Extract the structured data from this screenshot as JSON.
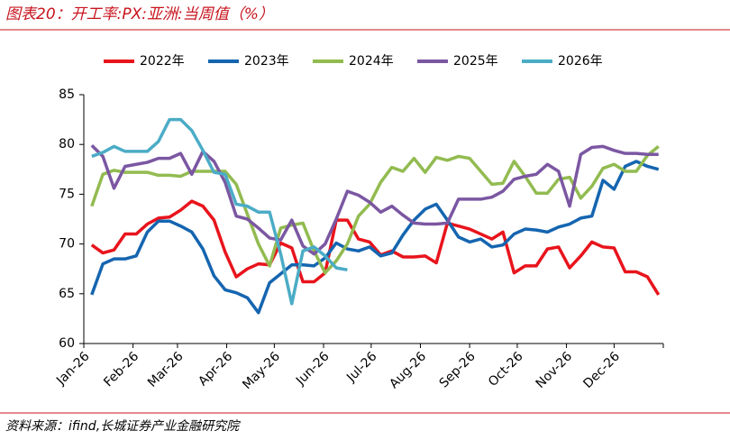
{
  "chart_data": {
    "type": "line",
    "title": "图表20：开工率:PX:亚洲:当周值（%）",
    "source": "资料来源：ifind,长城证券产业金融研究院",
    "x": [
      5,
      12,
      19,
      26,
      33,
      40,
      47,
      54,
      61,
      68,
      75,
      82,
      89,
      96,
      103,
      110,
      117,
      124,
      131,
      138,
      145,
      152,
      159,
      166,
      173,
      180,
      187,
      194,
      201,
      208,
      215,
      222,
      229,
      236,
      243,
      250,
      257,
      264,
      271,
      278,
      285,
      292,
      299,
      306,
      313,
      320,
      327,
      334,
      341,
      348,
      355,
      362
    ],
    "xlim": [
      0,
      365
    ],
    "xticks": [
      {
        "value": 0,
        "label": "Jan-26"
      },
      {
        "value": 31,
        "label": "Feb-26"
      },
      {
        "value": 59,
        "label": "Mar-26"
      },
      {
        "value": 90,
        "label": "Apr-26"
      },
      {
        "value": 120,
        "label": "May-26"
      },
      {
        "value": 151,
        "label": "Jun-26"
      },
      {
        "value": 181,
        "label": "Jul-26"
      },
      {
        "value": 212,
        "label": "Aug-26"
      },
      {
        "value": 243,
        "label": "Sep-26"
      },
      {
        "value": 273,
        "label": "Oct-26"
      },
      {
        "value": 304,
        "label": "Nov-26"
      },
      {
        "value": 334,
        "label": "Dec-26"
      }
    ],
    "ylim": [
      60,
      85
    ],
    "yticks": [
      60,
      65,
      70,
      75,
      80,
      85
    ],
    "grid": false,
    "legend": "top",
    "series": [
      {
        "name": "2022年",
        "color": "#e8141c",
        "values": [
          69.9,
          69.1,
          69.4,
          71.0,
          71.0,
          72.0,
          72.6,
          72.7,
          73.4,
          74.3,
          73.8,
          72.4,
          69.2,
          66.7,
          67.5,
          68.0,
          67.9,
          70.1,
          69.6,
          66.2,
          66.2,
          67.1,
          72.4,
          72.4,
          70.5,
          70.2,
          68.9,
          69.3,
          68.7,
          68.7,
          68.8,
          68.1,
          72.1,
          71.8,
          71.5,
          71.0,
          70.5,
          71.2,
          67.1,
          67.8,
          67.8,
          69.5,
          69.7,
          67.6,
          68.8,
          70.2,
          69.7,
          69.6,
          67.2,
          67.2,
          66.7,
          64.9
        ]
      },
      {
        "name": "2023年",
        "color": "#1565b0",
        "values": [
          64.9,
          68.0,
          68.5,
          68.5,
          68.8,
          71.2,
          72.3,
          72.3,
          71.8,
          71.2,
          69.5,
          66.8,
          65.4,
          65.1,
          64.6,
          63.1,
          66.1,
          67.0,
          67.9,
          67.9,
          67.8,
          68.6,
          70.1,
          69.5,
          69.3,
          69.7,
          68.8,
          69.1,
          70.9,
          72.4,
          73.5,
          74.0,
          72.4,
          70.7,
          70.2,
          70.5,
          69.7,
          69.9,
          71.0,
          71.5,
          71.4,
          71.2,
          71.7,
          72.0,
          72.6,
          72.8,
          76.4,
          75.5,
          77.8,
          78.3,
          77.8,
          77.5
        ]
      },
      {
        "name": "2024年",
        "color": "#92bb50",
        "values": [
          73.8,
          77.0,
          77.4,
          77.2,
          77.2,
          77.2,
          76.9,
          76.9,
          76.8,
          77.3,
          77.3,
          77.3,
          77.3,
          76.0,
          73.0,
          70.0,
          67.8,
          71.6,
          71.9,
          72.1,
          69.3,
          67.1,
          68.3,
          70.0,
          72.8,
          74.0,
          76.2,
          77.7,
          77.3,
          78.6,
          77.2,
          78.7,
          78.4,
          78.8,
          78.6,
          77.3,
          76.0,
          76.1,
          78.3,
          76.8,
          75.1,
          75.1,
          76.5,
          76.7,
          74.6,
          75.8,
          77.6,
          78.0,
          77.3,
          77.3,
          78.9,
          79.8
        ]
      },
      {
        "name": "2025年",
        "color": "#7b57a2",
        "values": [
          79.9,
          78.8,
          75.6,
          77.8,
          78.0,
          78.2,
          78.6,
          78.6,
          79.1,
          77.0,
          79.3,
          78.3,
          76.2,
          72.8,
          72.5,
          71.6,
          70.6,
          70.4,
          72.4,
          69.8,
          69.0,
          70.0,
          72.5,
          75.3,
          74.9,
          74.2,
          73.2,
          73.8,
          72.9,
          72.1,
          72.0,
          72.0,
          72.1,
          74.5,
          74.5,
          74.5,
          74.7,
          75.3,
          76.5,
          76.8,
          77.0,
          78.0,
          77.3,
          73.8,
          79.0,
          79.7,
          79.8,
          79.4,
          79.1,
          79.1,
          79.0,
          79.0
        ]
      },
      {
        "name": "2026年",
        "color": "#4bacc6",
        "values": [
          78.8,
          79.2,
          79.8,
          79.3,
          79.3,
          79.3,
          80.3,
          82.5,
          82.5,
          81.4,
          79.4,
          77.2,
          77.0,
          74.0,
          73.8,
          73.2,
          73.2,
          69.0,
          64.0,
          69.3,
          69.7,
          68.8,
          67.6,
          67.4,
          null,
          null,
          null,
          null,
          null,
          null,
          null,
          null,
          null,
          null,
          null,
          null,
          null,
          null,
          null,
          null,
          null,
          null,
          null,
          null,
          null,
          null,
          null,
          null,
          null,
          null,
          null,
          null
        ]
      }
    ]
  }
}
